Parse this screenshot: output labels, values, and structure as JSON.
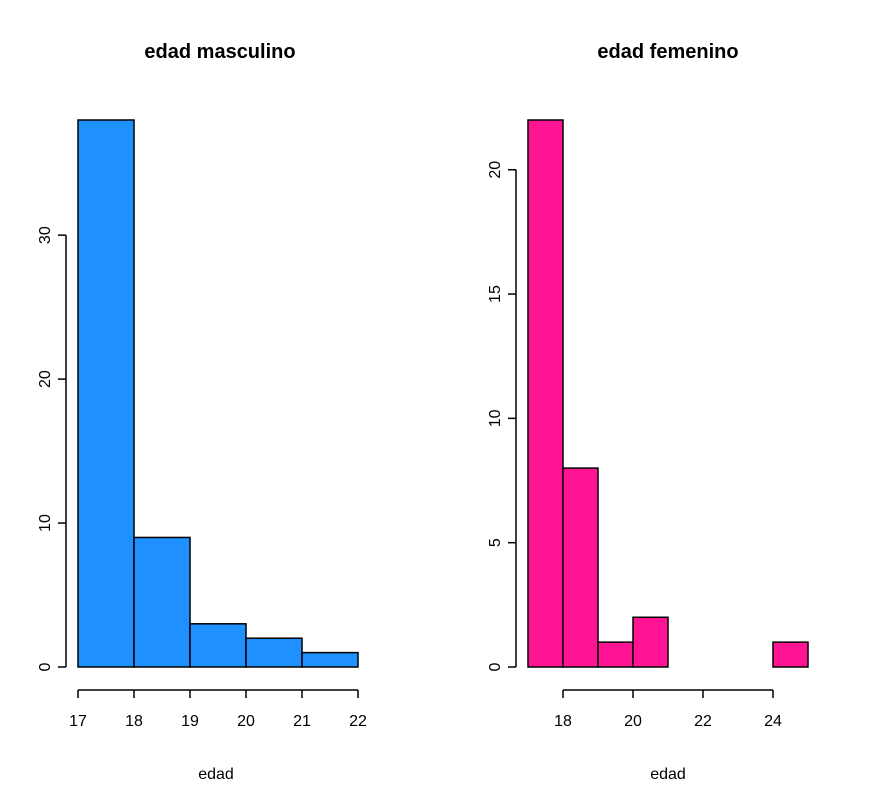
{
  "chart_data": [
    {
      "type": "bar",
      "title": "edad masculino",
      "xlabel": "edad",
      "ylabel": "",
      "color": "#1E90FF",
      "bins": [
        [
          17,
          18
        ],
        [
          18,
          19
        ],
        [
          19,
          20
        ],
        [
          20,
          21
        ],
        [
          21,
          22
        ]
      ],
      "values": [
        38,
        9,
        3,
        2,
        1
      ],
      "xticks": [
        17,
        18,
        19,
        20,
        21,
        22
      ],
      "yticks": [
        0,
        10,
        20,
        30
      ],
      "xlim": [
        17,
        22
      ],
      "ylim": [
        0,
        38
      ],
      "grid": false,
      "legend": "none"
    },
    {
      "type": "bar",
      "title": "edad femenino",
      "xlabel": "edad",
      "ylabel": "",
      "color": "#FF1493",
      "bins": [
        [
          17,
          18
        ],
        [
          18,
          19
        ],
        [
          19,
          20
        ],
        [
          20,
          21
        ],
        [
          21,
          22
        ],
        [
          22,
          23
        ],
        [
          23,
          24
        ],
        [
          24,
          25
        ]
      ],
      "values": [
        22,
        8,
        1,
        2,
        0,
        0,
        0,
        1
      ],
      "xticks": [
        18,
        20,
        22,
        24
      ],
      "yticks": [
        0,
        5,
        10,
        15,
        20
      ],
      "xlim": [
        17,
        25
      ],
      "ylim": [
        0,
        22
      ],
      "grid": false,
      "legend": "none"
    }
  ]
}
